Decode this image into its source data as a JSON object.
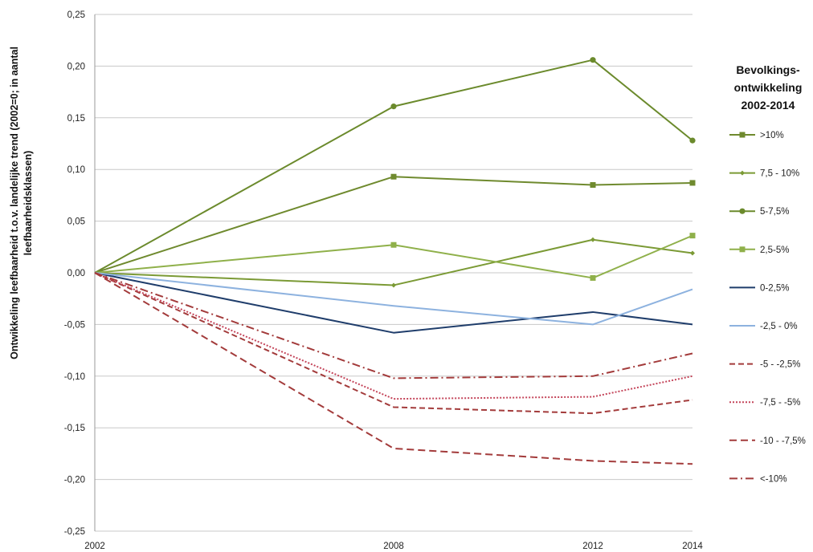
{
  "chart_data": {
    "type": "line",
    "ylabel_lines": [
      "Ontwikkeling leefbaarheid t.o.v. landelijke trend (2002=0; in aantal",
      "leefbaarheidsklassen)"
    ],
    "legend_title_lines": [
      "Bevolkings-",
      "ontwikkeling",
      "2002-2014"
    ],
    "legend_placement": "right",
    "grid": true,
    "x": [
      2002,
      2008,
      2012,
      2014
    ],
    "x_tick_labels": [
      "2002",
      "2008",
      "2012",
      "2014"
    ],
    "ylim": [
      -0.25,
      0.25
    ],
    "y_ticks": [
      0.25,
      0.2,
      0.15,
      0.1,
      0.05,
      0.0,
      -0.05,
      -0.1,
      -0.15,
      -0.2,
      -0.25
    ],
    "y_tick_labels": [
      "0,25",
      "0,20",
      "0,15",
      "0,10",
      "0,05",
      "0,00",
      "-0,05",
      "-0,10",
      "-0,15",
      "-0,20",
      "-0,25"
    ],
    "series": [
      {
        "name": ">10%",
        "values": [
          0,
          0.093,
          0.085,
          0.087
        ],
        "color": "#6f8a2e",
        "dash": "",
        "marker": "square",
        "width": 2
      },
      {
        "name": "7,5 - 10%",
        "values": [
          0,
          -0.012,
          0.032,
          0.019
        ],
        "color": "#7b9a35",
        "dash": "",
        "marker": "diamond",
        "width": 2
      },
      {
        "name": "5-7,5%",
        "values": [
          0,
          0.161,
          0.206,
          0.128
        ],
        "color": "#6b8a2c",
        "dash": "",
        "marker": "circle",
        "width": 2
      },
      {
        "name": "2,5-5%",
        "values": [
          0,
          0.027,
          -0.005,
          0.036
        ],
        "color": "#8fb04a",
        "dash": "",
        "marker": "square",
        "width": 2
      },
      {
        "name": "0-2,5%",
        "values": [
          0,
          -0.058,
          -0.038,
          -0.05
        ],
        "color": "#1f3d6b",
        "dash": "",
        "marker": "none",
        "width": 2
      },
      {
        "name": "-2,5 - 0%",
        "values": [
          0,
          -0.032,
          -0.05,
          -0.016
        ],
        "color": "#8db2df",
        "dash": "",
        "marker": "none",
        "width": 2
      },
      {
        "name": "-5 - -2,5%",
        "values": [
          0,
          -0.13,
          -0.136,
          -0.123
        ],
        "color": "#a33b3b",
        "dash": "7,4",
        "marker": "none",
        "width": 2
      },
      {
        "name": "-7,5 - -5%",
        "values": [
          0,
          -0.122,
          -0.12,
          -0.1
        ],
        "color": "#c4455a",
        "dash": "2,2",
        "marker": "none",
        "width": 2
      },
      {
        "name": "-10 - -7,5%",
        "values": [
          0,
          -0.17,
          -0.182,
          -0.185
        ],
        "color": "#a33b3b",
        "dash": "9,5",
        "marker": "none",
        "width": 2
      },
      {
        "name": "<-10%",
        "values": [
          0,
          -0.102,
          -0.1,
          -0.078
        ],
        "color": "#a33b3b",
        "dash": "10,4,2,4",
        "marker": "none",
        "width": 2
      }
    ]
  }
}
